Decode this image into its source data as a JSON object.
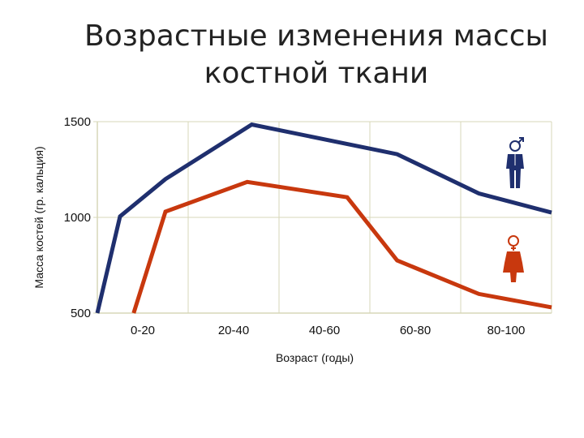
{
  "title_lines": [
    "Возрастные изменения массы",
    "костной ткани"
  ],
  "chart_data": {
    "type": "line",
    "title": "Возрастные изменения массы костной ткани",
    "xlabel": "Возраст (годы)",
    "ylabel": "Масса костей (гр. кальция)",
    "categories": [
      "0-20",
      "20-40",
      "40-60",
      "60-80",
      "80-100"
    ],
    "yticks": [
      1500,
      1000,
      500
    ],
    "ylim": [
      500,
      1500
    ],
    "grid": true,
    "legend": "icons on the right",
    "series": [
      {
        "color": "#1f2f6e",
        "icon": "male-figure-icon",
        "points": [
          [
            0.0,
            500
          ],
          [
            0.25,
            1005
          ],
          [
            0.75,
            1200
          ],
          [
            1.7,
            1485
          ],
          [
            3.3,
            1330
          ],
          [
            4.2,
            1125
          ],
          [
            5.0,
            1025
          ]
        ]
      },
      {
        "color": "#c8380e",
        "icon": "female-figure-icon",
        "points": [
          [
            0.4,
            500
          ],
          [
            0.75,
            1030
          ],
          [
            1.65,
            1185
          ],
          [
            2.75,
            1105
          ],
          [
            3.3,
            775
          ],
          [
            4.2,
            600
          ],
          [
            5.0,
            530
          ]
        ]
      }
    ],
    "colors": {
      "male": "#1f2f6e",
      "female": "#c8380e",
      "grid": "#d7d7b8"
    }
  }
}
